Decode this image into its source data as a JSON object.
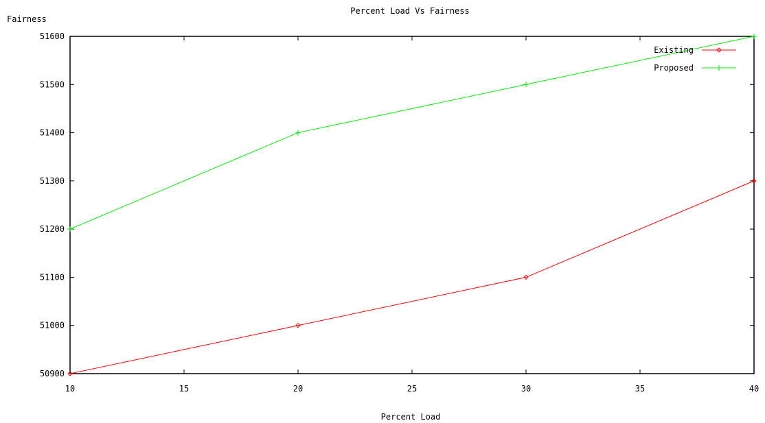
{
  "chart_data": {
    "type": "line",
    "title": "Percent Load  Vs Fairness",
    "xlabel": "Percent Load",
    "ylabel": "Fairness",
    "xlim": [
      10,
      40
    ],
    "ylim": [
      50900,
      51600
    ],
    "xticks": [
      10,
      15,
      20,
      25,
      30,
      35,
      40
    ],
    "yticks": [
      50900,
      51000,
      51100,
      51200,
      51300,
      51400,
      51500,
      51600
    ],
    "grid": false,
    "legend_position": "top-right",
    "series": [
      {
        "name": "Existing",
        "color": "#ff0000",
        "marker": "diamond",
        "x": [
          10,
          20,
          30,
          40
        ],
        "y": [
          50900,
          51000,
          51100,
          51300
        ]
      },
      {
        "name": "Proposed",
        "color": "#00ee00",
        "marker": "plus",
        "x": [
          10,
          20,
          30,
          40
        ],
        "y": [
          51200,
          51400,
          51500,
          51600
        ]
      }
    ]
  }
}
